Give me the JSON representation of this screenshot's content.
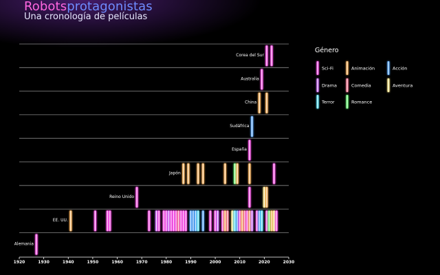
{
  "header": {
    "title_part1": "Robots",
    "title_part2": "protagonistas",
    "subtitle": "Una cronología de películas",
    "title_color_1": "#ff66e0",
    "title_color_2": "#6f8cff"
  },
  "chart_data": {
    "type": "timeline",
    "xlim": [
      1920,
      2030
    ],
    "x_ticks": [
      1920,
      1930,
      1940,
      1950,
      1960,
      1970,
      1980,
      1990,
      2000,
      2010,
      2020,
      2030
    ],
    "grid": "horizontal",
    "legend": {
      "title": "Género",
      "placement": "right",
      "items": [
        {
          "genre": "Sci-Fi",
          "color": "#ff55ee"
        },
        {
          "genre": "Animación",
          "color": "#ffb860"
        },
        {
          "genre": "Acción",
          "color": "#5aaaff"
        },
        {
          "genre": "Drama",
          "color": "#d070ff"
        },
        {
          "genre": "Comedia",
          "color": "#ff7d9c"
        },
        {
          "genre": "Aventura",
          "color": "#ffe98a"
        },
        {
          "genre": "Terror",
          "color": "#5ee8ff"
        },
        {
          "genre": "Romance",
          "color": "#6dff7a"
        }
      ]
    },
    "countries": [
      {
        "name": "Corea del Sur",
        "films": [
          [
            2021,
            "Sci-Fi"
          ],
          [
            2023,
            "Sci-Fi"
          ]
        ]
      },
      {
        "name": "Australia",
        "films": [
          [
            2019,
            "Sci-Fi"
          ]
        ]
      },
      {
        "name": "China",
        "films": [
          [
            2018,
            "Animación"
          ],
          [
            2021,
            "Animación"
          ]
        ]
      },
      {
        "name": "Sudáfrica",
        "films": [
          [
            2015,
            "Acción"
          ]
        ]
      },
      {
        "name": "España",
        "films": [
          [
            2014,
            "Sci-Fi"
          ]
        ]
      },
      {
        "name": "Japón",
        "films": [
          [
            1987,
            "Animación"
          ],
          [
            1989,
            "Animación"
          ],
          [
            1993,
            "Animación"
          ],
          [
            1995,
            "Animación"
          ],
          [
            2004,
            "Animación"
          ],
          [
            2008,
            "Romance"
          ],
          [
            2009,
            "Animación"
          ],
          [
            2014,
            "Animación"
          ],
          [
            2024,
            "Sci-Fi"
          ]
        ]
      },
      {
        "name": "Reino Unido",
        "films": [
          [
            1968,
            "Sci-Fi"
          ],
          [
            2014,
            "Sci-Fi"
          ],
          [
            2020,
            "Aventura"
          ],
          [
            2021,
            "Animación"
          ]
        ]
      },
      {
        "name": "EE. UU.",
        "films": [
          [
            1941,
            "Animación"
          ],
          [
            1951,
            "Sci-Fi"
          ],
          [
            1956,
            "Sci-Fi"
          ],
          [
            1957,
            "Sci-Fi"
          ],
          [
            1973,
            "Sci-Fi"
          ],
          [
            1976,
            "Drama"
          ],
          [
            1977,
            "Sci-Fi"
          ],
          [
            1979,
            "Sci-Fi"
          ],
          [
            1980,
            "Sci-Fi"
          ],
          [
            1981,
            "Drama"
          ],
          [
            1982,
            "Sci-Fi"
          ],
          [
            1983,
            "Sci-Fi"
          ],
          [
            1984,
            "Sci-Fi"
          ],
          [
            1985,
            "Comedia"
          ],
          [
            1986,
            "Sci-Fi"
          ],
          [
            1987,
            "Sci-Fi"
          ],
          [
            1988,
            "Sci-Fi"
          ],
          [
            1990,
            "Acción"
          ],
          [
            1991,
            "Acción"
          ],
          [
            1992,
            "Acción"
          ],
          [
            1993,
            "Terror"
          ],
          [
            1995,
            "Acción"
          ],
          [
            1998,
            "Sci-Fi"
          ],
          [
            2000,
            "Sci-Fi"
          ],
          [
            2001,
            "Drama"
          ],
          [
            2003,
            "Sci-Fi"
          ],
          [
            2004,
            "Animación"
          ],
          [
            2005,
            "Comedia"
          ],
          [
            2007,
            "Aventura"
          ],
          [
            2008,
            "Terror"
          ],
          [
            2009,
            "Acción"
          ],
          [
            2010,
            "Sci-Fi"
          ],
          [
            2011,
            "Animación"
          ],
          [
            2012,
            "Comedia"
          ],
          [
            2013,
            "Sci-Fi"
          ],
          [
            2014,
            "Animación"
          ],
          [
            2015,
            "Drama"
          ],
          [
            2017,
            "Sci-Fi"
          ],
          [
            2018,
            "Acción"
          ],
          [
            2019,
            "Terror"
          ],
          [
            2021,
            "Sci-Fi"
          ],
          [
            2022,
            "Romance"
          ],
          [
            2023,
            "Animación"
          ],
          [
            2024,
            "Aventura"
          ],
          [
            2025,
            "Sci-Fi"
          ]
        ]
      },
      {
        "name": "Alemania",
        "films": [
          [
            1927,
            "Sci-Fi"
          ]
        ]
      }
    ]
  }
}
